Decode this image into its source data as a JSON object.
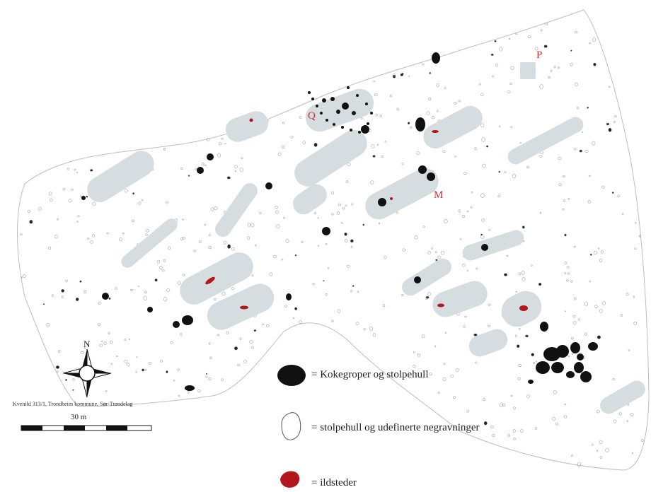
{
  "map": {
    "site_labels": [
      {
        "id": "Q",
        "text": "Q"
      },
      {
        "id": "P",
        "text": "P"
      },
      {
        "id": "M",
        "text": "M"
      }
    ],
    "colors": {
      "house_fill": "#d6dde0",
      "pit_fill": "#111111",
      "hearth_fill": "#b3161b",
      "outline": "#9a9a9a",
      "label": "#c8302f"
    }
  },
  "compass": {
    "north_label": "N",
    "icon": "compass-rose-icon"
  },
  "credit": "Kvenild 313/1, Trondheim kommune, Sør-Trøndelag",
  "scale": {
    "label": "30 m",
    "segments": 6
  },
  "legend": {
    "items": [
      {
        "symbol": "black-pit",
        "text": "= Kokegroper og stolpehull"
      },
      {
        "symbol": "outline-pit",
        "text": "= stolpehull og udefinerte negravninger"
      },
      {
        "symbol": "red-hearth",
        "text": "= ildsteder"
      }
    ]
  }
}
